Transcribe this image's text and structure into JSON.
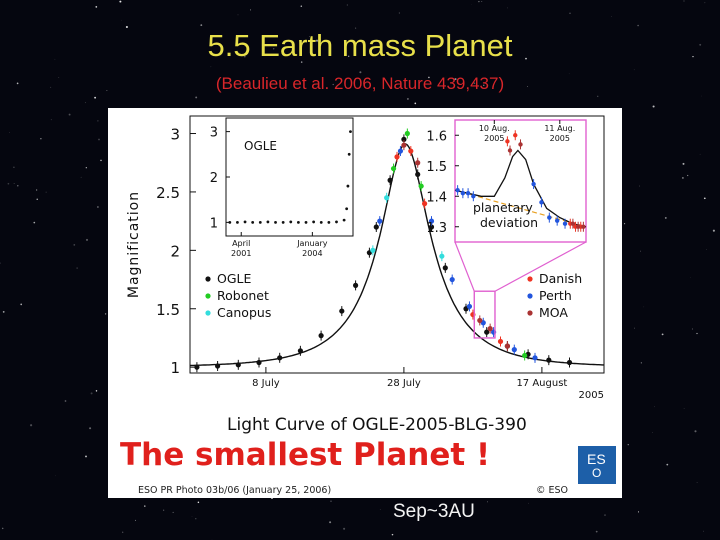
{
  "slide": {
    "title": "5.5 Earth mass Planet",
    "subtitle": "(Beaulieu et al. 2006, Nature 439,437)",
    "overlay_red": "The smallest Planet !",
    "overlay_white": "Sep~3AU"
  },
  "colors": {
    "title": "#e8e04a",
    "subtitle": "#d8262a",
    "overlay_red": "#e0201c",
    "zoom_box": "#e060d0",
    "ogle": "#111111",
    "robonet": "#22cc22",
    "canopus": "#33dddd",
    "danish": "#ee3322",
    "perth": "#2255dd",
    "moa": "#aa3333",
    "eso_logo_bg": "#1d5fa8"
  },
  "logo": {
    "text_main": "ES",
    "text_sub": "O"
  },
  "chart_data": [
    {
      "type": "scatter",
      "title": "Light Curve of OGLE-2005-BLG-390",
      "ylabel": "Magnification",
      "xlabel": "",
      "x_tick_labels": [
        "8 July",
        "28 July",
        "17 August"
      ],
      "x_year_label": "2005",
      "y_ticks": [
        1,
        1.5,
        2,
        2.5,
        3
      ],
      "ylim": [
        0.95,
        3.15
      ],
      "xlim": [
        0,
        60
      ],
      "x_ticks": [
        11,
        31,
        51
      ],
      "grid": false,
      "legend_placement": "center",
      "legend": [
        "OGLE",
        "Robonet",
        "Canopus",
        "Danish",
        "Perth",
        "MOA"
      ],
      "model_curve": {
        "t0": 31.2,
        "u0": 0.36,
        "tE": 10.0
      },
      "series": [
        {
          "name": "OGLE",
          "color": "#111111",
          "x": [
            1,
            4,
            7,
            10,
            13,
            16,
            19,
            22,
            24,
            26,
            27,
            29,
            31,
            33,
            35,
            37,
            40,
            43,
            46,
            49,
            52,
            55
          ],
          "y": [
            1.0,
            1.01,
            1.02,
            1.04,
            1.08,
            1.14,
            1.27,
            1.48,
            1.7,
            1.98,
            2.2,
            2.6,
            2.95,
            2.65,
            2.2,
            1.85,
            1.5,
            1.3,
            1.18,
            1.11,
            1.06,
            1.04
          ]
        },
        {
          "name": "Robonet",
          "color": "#22cc22",
          "x": [
            29.5,
            31.5,
            33.5,
            48.5
          ],
          "y": [
            2.7,
            3.0,
            2.55,
            1.1
          ]
        },
        {
          "name": "Canopus",
          "color": "#33dddd",
          "x": [
            26.5,
            28.5,
            36.5
          ],
          "y": [
            2.0,
            2.45,
            1.95
          ]
        },
        {
          "name": "Danish",
          "color": "#ee3322",
          "x": [
            30,
            32,
            34,
            41,
            45
          ],
          "y": [
            2.8,
            2.85,
            2.4,
            1.45,
            1.22
          ]
        },
        {
          "name": "Perth",
          "color": "#2255dd",
          "x": [
            27.5,
            30.5,
            35,
            38,
            40.5,
            42.5,
            44,
            47,
            50
          ],
          "y": [
            2.25,
            2.85,
            2.25,
            1.75,
            1.52,
            1.38,
            1.3,
            1.15,
            1.08
          ]
        },
        {
          "name": "MOA",
          "color": "#aa3333",
          "x": [
            31,
            33,
            42,
            43.5,
            46
          ],
          "y": [
            2.9,
            2.75,
            1.4,
            1.33,
            1.18
          ]
        }
      ]
    },
    {
      "type": "scatter",
      "title": "OGLE",
      "x_tick_labels": [
        "April 2001",
        "January 2004"
      ],
      "y_ticks": [
        1,
        2,
        3
      ],
      "ylim": [
        0.7,
        3.3
      ],
      "xlim": [
        0,
        100
      ],
      "x_ticks": [
        12,
        68
      ],
      "series": [
        {
          "name": "OGLE baseline",
          "x": [
            3,
            9,
            15,
            21,
            27,
            33,
            39,
            45,
            51,
            57,
            63,
            69,
            75,
            81,
            87,
            93,
            95,
            96,
            97,
            98
          ],
          "y": [
            1.0,
            1.0,
            1.01,
            1.0,
            1.0,
            1.01,
            1.0,
            1.0,
            1.01,
            1.0,
            1.0,
            1.01,
            1.0,
            1.0,
            1.01,
            1.05,
            1.3,
            1.8,
            2.5,
            3.0
          ]
        }
      ]
    },
    {
      "type": "scatter",
      "title": "",
      "annotation": "planetary deviation",
      "x_tick_labels": [
        "10 Aug. 2005",
        "11 Aug. 2005"
      ],
      "y_ticks": [
        1.3,
        1.4,
        1.5,
        1.6
      ],
      "ylim": [
        1.25,
        1.65
      ],
      "xlim": [
        0,
        100
      ],
      "x_ticks": [
        30,
        80
      ],
      "series": [
        {
          "name": "Perth",
          "color": "#2255dd",
          "x": [
            2,
            6,
            10,
            14,
            60,
            66,
            72,
            78,
            84
          ],
          "y": [
            1.42,
            1.41,
            1.41,
            1.4,
            1.44,
            1.38,
            1.33,
            1.32,
            1.31
          ]
        },
        {
          "name": "Danish",
          "color": "#ee3322",
          "x": [
            40,
            46,
            88,
            92,
            96
          ],
          "y": [
            1.58,
            1.6,
            1.31,
            1.3,
            1.3
          ]
        },
        {
          "name": "MOA",
          "color": "#aa3333",
          "x": [
            42,
            50,
            90,
            94,
            98
          ],
          "y": [
            1.55,
            1.57,
            1.31,
            1.3,
            1.3
          ]
        }
      ],
      "model_deviation": {
        "x": [
          0,
          20,
          30,
          38,
          44,
          48,
          54,
          60,
          70,
          80,
          90,
          100
        ],
        "y": [
          1.42,
          1.4,
          1.4,
          1.46,
          1.53,
          1.55,
          1.52,
          1.44,
          1.36,
          1.33,
          1.31,
          1.3
        ]
      },
      "model_single_lens": {
        "x": [
          0,
          100
        ],
        "y": [
          1.42,
          1.3
        ]
      }
    }
  ],
  "figure": {
    "credit_left": "ESO PR Photo 03b/06 (January 25, 2006)",
    "credit_right": "© ESO"
  }
}
